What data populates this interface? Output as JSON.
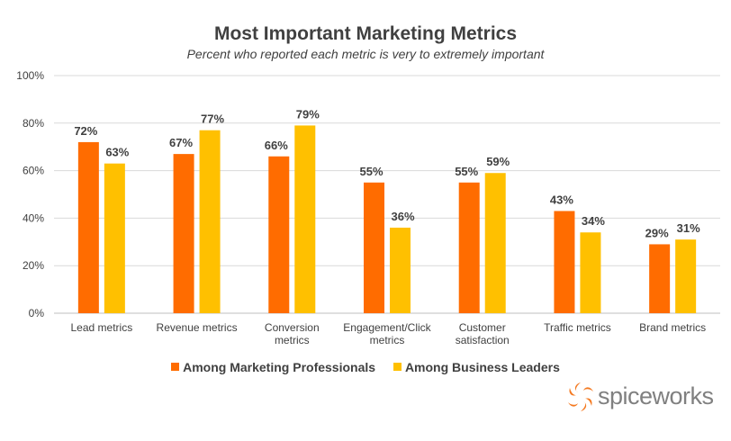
{
  "chart_data": {
    "type": "bar",
    "title": "Most Important Marketing Metrics",
    "subtitle": "Percent who reported each metric is very to extremely important",
    "categories": [
      [
        "Lead metrics"
      ],
      [
        "Revenue metrics"
      ],
      [
        "Conversion",
        "metrics"
      ],
      [
        "Engagement/Click",
        "metrics"
      ],
      [
        "Customer",
        "satisfaction"
      ],
      [
        "Traffic metrics"
      ],
      [
        "Brand metrics"
      ]
    ],
    "series": [
      {
        "name": "Among Marketing Professionals",
        "color": "#FF6C00",
        "values": [
          72,
          67,
          66,
          55,
          55,
          43,
          29
        ]
      },
      {
        "name": "Among Business Leaders",
        "color": "#FFC000",
        "values": [
          63,
          77,
          79,
          36,
          59,
          34,
          31
        ]
      }
    ],
    "ylim": [
      0,
      100
    ],
    "yticks": [
      0,
      20,
      40,
      60,
      80,
      100
    ],
    "ytick_format": "%",
    "value_format": "%",
    "grid": true,
    "legend_position": "bottom"
  },
  "brand": {
    "name": "spiceworks",
    "color": "#808080",
    "accent": "#F47920"
  }
}
